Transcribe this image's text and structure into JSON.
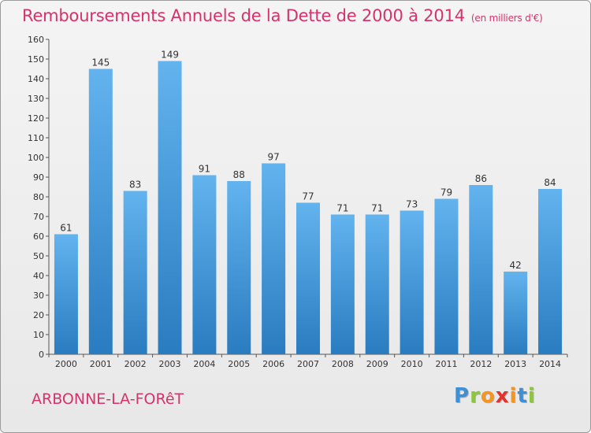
{
  "title": "Remboursements Annuels de la Dette de 2000 à 2014",
  "unit_label": "(en milliers d'€)",
  "commune": "ARBONNE-LA-FORêT",
  "logo": {
    "letters": [
      "P",
      "r",
      "o",
      "x",
      "i",
      "t",
      "i"
    ],
    "colors": [
      "#3d8fd6",
      "#8cc63f",
      "#f7941d",
      "#e2322e",
      "#f7941d",
      "#3d8fd6",
      "#8cc63f"
    ]
  },
  "colors": {
    "title": "#d6326b",
    "bar_top": "#62b3ee",
    "bar_bottom": "#2a7cc0"
  },
  "chart_data": {
    "type": "bar",
    "categories": [
      "2000",
      "2001",
      "2002",
      "2003",
      "2004",
      "2005",
      "2006",
      "2007",
      "2008",
      "2009",
      "2010",
      "2011",
      "2012",
      "2013",
      "2014"
    ],
    "values": [
      61,
      145,
      83,
      149,
      91,
      88,
      97,
      77,
      71,
      71,
      73,
      79,
      86,
      42,
      84
    ],
    "ylim": [
      0,
      160
    ],
    "yticks": [
      0,
      10,
      20,
      30,
      40,
      50,
      60,
      70,
      80,
      90,
      100,
      110,
      120,
      130,
      140,
      150,
      160
    ],
    "grid": false
  }
}
